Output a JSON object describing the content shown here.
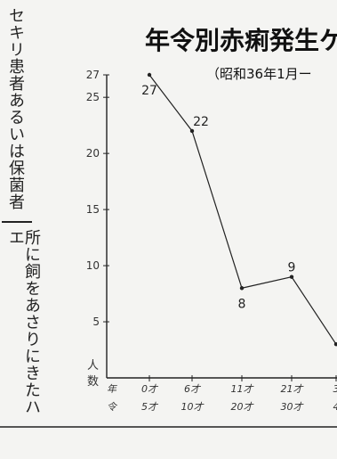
{
  "left_column": {
    "text_top": "セキリ患者あるいは保菌者",
    "text_bottom": "所に飼をあさりにきたハエ"
  },
  "chart_data": {
    "type": "line",
    "title": "年令別赤痢発生ケ",
    "subtitle": "（昭和36年1月ー",
    "ylabel": "人数",
    "xlabel": "年令",
    "ylim": [
      0,
      27
    ],
    "yticks": [
      "5",
      "10",
      "15",
      "20",
      "25",
      "27"
    ],
    "categories": [
      [
        "0才",
        "5才"
      ],
      [
        "6才",
        "10才"
      ],
      [
        "11才",
        "20才"
      ],
      [
        "21才",
        "30才"
      ],
      [
        "3",
        "4"
      ]
    ],
    "values": [
      27,
      22,
      8,
      9,
      3
    ],
    "data_labels": [
      "27",
      "22",
      "8",
      "9",
      ""
    ]
  }
}
